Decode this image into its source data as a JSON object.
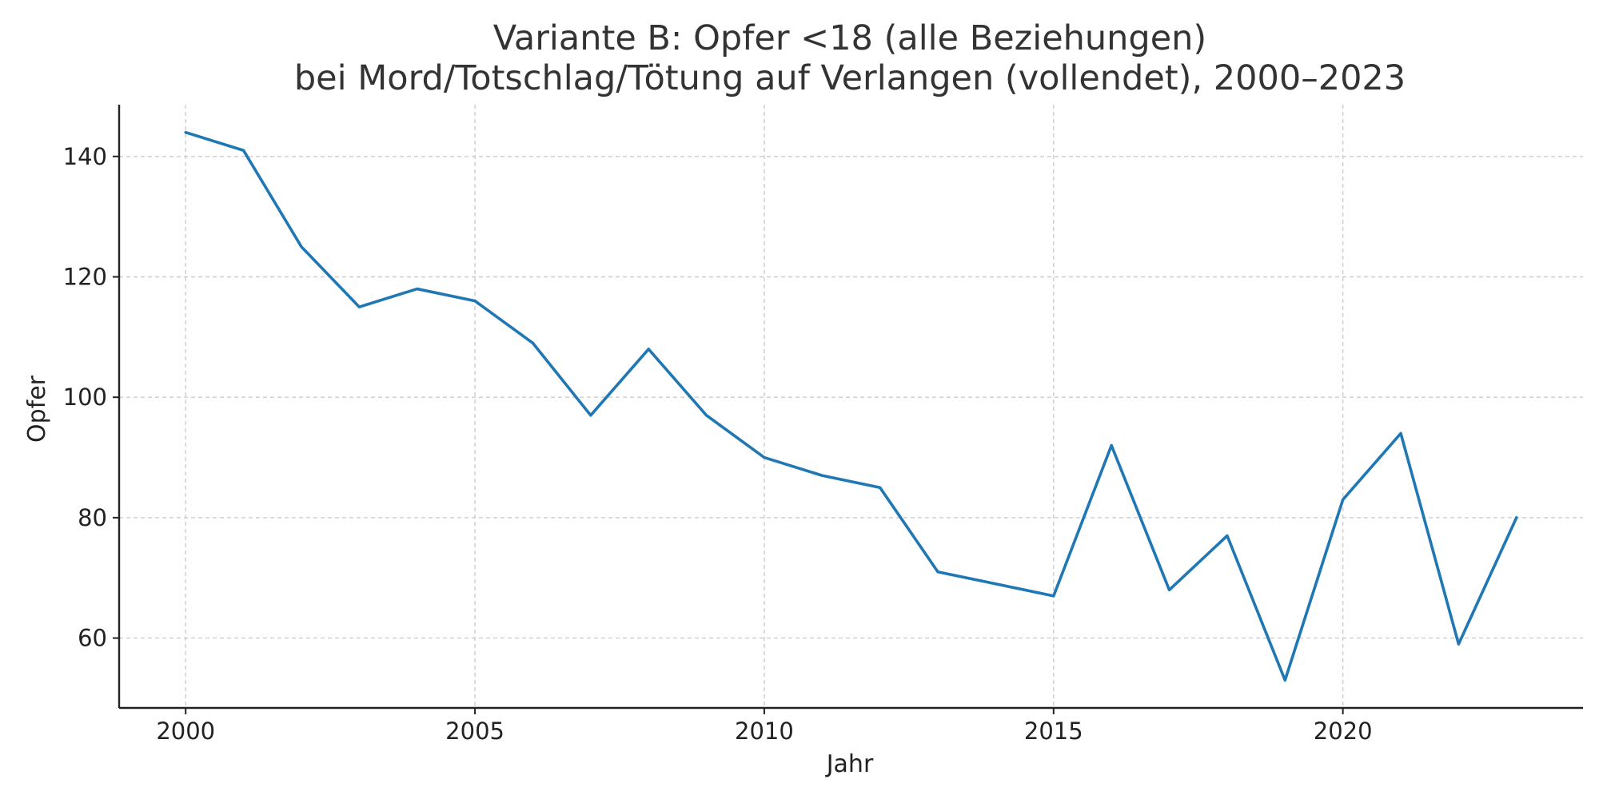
{
  "chart_data": {
    "type": "line",
    "title": "Variante B: Opfer <18 (alle Beziehungen)",
    "subtitle": "bei Mord/Totschlag/Tötung auf Verlangen (vollendet), 2000–2023",
    "xlabel": "Jahr",
    "ylabel": "Opfer",
    "x": [
      2000,
      2001,
      2002,
      2003,
      2004,
      2005,
      2006,
      2007,
      2008,
      2009,
      2010,
      2011,
      2012,
      2013,
      2014,
      2015,
      2016,
      2017,
      2018,
      2019,
      2020,
      2021,
      2022,
      2023
    ],
    "series": [
      {
        "values": [
          144,
          141,
          125,
          115,
          118,
          116,
          109,
          97,
          108,
          97,
          90,
          87,
          85,
          71,
          69,
          67,
          92,
          68,
          77,
          53,
          83,
          94,
          59,
          80
        ],
        "color": "#1f77b4"
      }
    ],
    "xlim": [
      1998.85,
      2024.15
    ],
    "ylim": [
      48.4,
      148.6
    ],
    "xticks": [
      2000,
      2005,
      2010,
      2015,
      2020
    ],
    "yticks": [
      60,
      80,
      100,
      120,
      140
    ],
    "grid": true
  }
}
